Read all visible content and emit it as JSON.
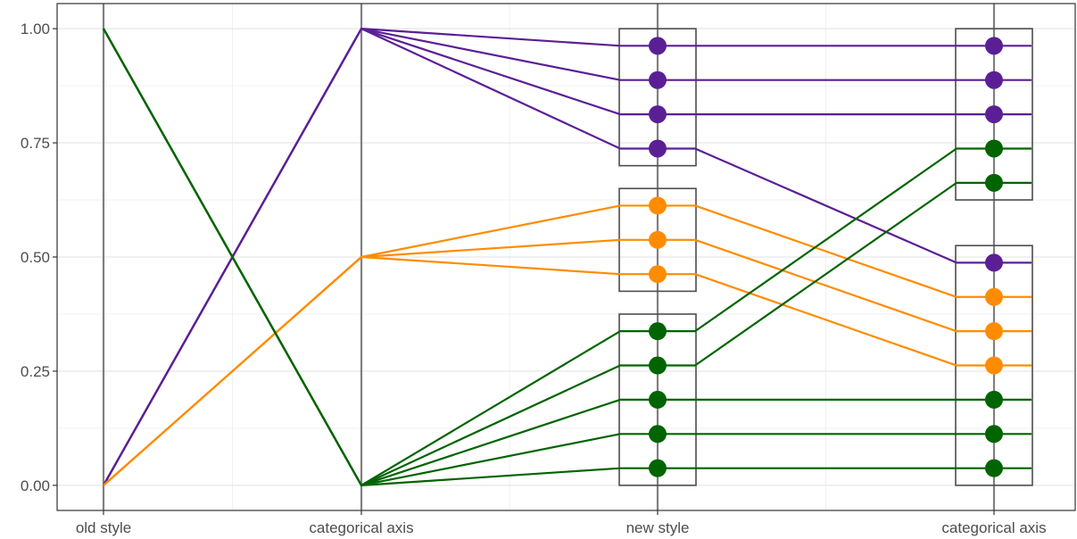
{
  "chart_data": {
    "type": "line",
    "title": "",
    "xlabel": "",
    "ylabel": "",
    "axes": [
      "old style",
      "categorical axis",
      "new style",
      "categorical axis"
    ],
    "ylim": [
      -0.055,
      1.055
    ],
    "y_ticks": [
      0,
      0.25,
      0.5,
      0.75,
      1
    ],
    "y_tick_labels": [
      "0.00",
      "0.25",
      "0.50",
      "0.75",
      "1.00"
    ],
    "grid": true,
    "legend": "none",
    "colors": {
      "purple": "#5b1f95",
      "orange": "#ff8c00",
      "green": "#006400",
      "axis": "#808080",
      "box": "#4d4d4d"
    },
    "boxes": [
      {
        "axis": 2,
        "ymin": 0.7,
        "ymax": 1.0
      },
      {
        "axis": 2,
        "ymin": 0.425,
        "ymax": 0.65
      },
      {
        "axis": 2,
        "ymin": 0.0,
        "ymax": 0.375
      },
      {
        "axis": 3,
        "ymin": 0.625,
        "ymax": 1.0
      },
      {
        "axis": 3,
        "ymin": 0.0,
        "ymax": 0.525
      }
    ],
    "lines": [
      {
        "color": "purple",
        "values": [
          0,
          1,
          0.9625,
          0.9625
        ]
      },
      {
        "color": "purple",
        "values": [
          0,
          1,
          0.8875,
          0.8875
        ]
      },
      {
        "color": "purple",
        "values": [
          0,
          1,
          0.8125,
          0.8125
        ]
      },
      {
        "color": "purple",
        "values": [
          0,
          1,
          0.7375,
          0.4875
        ]
      },
      {
        "color": "orange",
        "values": [
          0,
          0.5,
          0.6125,
          0.4125
        ]
      },
      {
        "color": "orange",
        "values": [
          0,
          0.5,
          0.5375,
          0.3375
        ]
      },
      {
        "color": "orange",
        "values": [
          0,
          0.5,
          0.4625,
          0.2625
        ]
      },
      {
        "color": "green",
        "values": [
          1,
          0,
          0.3375,
          0.7375
        ]
      },
      {
        "color": "green",
        "values": [
          1,
          0,
          0.2625,
          0.6625
        ]
      },
      {
        "color": "green",
        "values": [
          1,
          0,
          0.1875,
          0.1875
        ]
      },
      {
        "color": "green",
        "values": [
          1,
          0,
          0.1125,
          0.1125
        ]
      },
      {
        "color": "green",
        "values": [
          1,
          0,
          0.0375,
          0.0375
        ]
      }
    ]
  }
}
